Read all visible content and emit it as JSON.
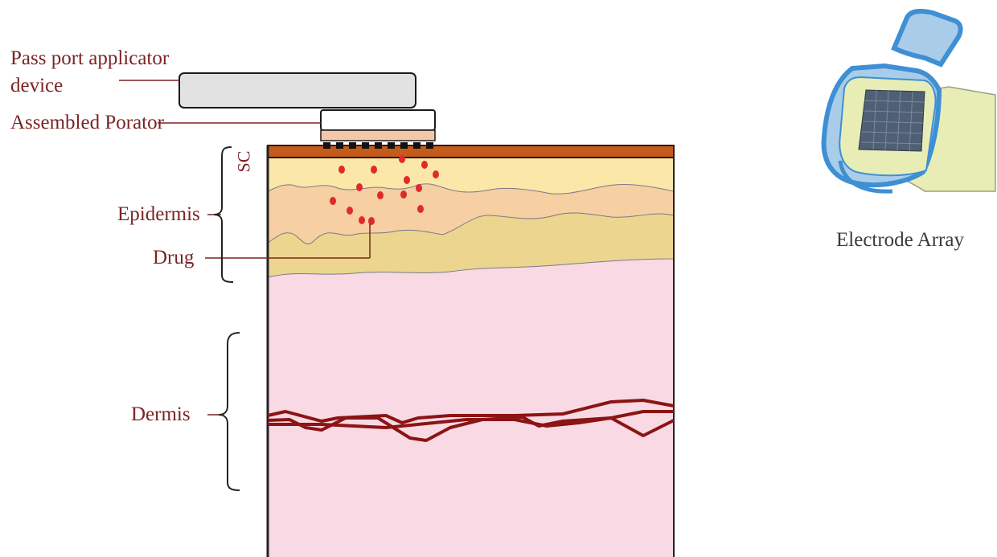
{
  "labels": {
    "applicator_line1": "Pass port applicator",
    "applicator_line2": "device",
    "porator": "Assembled Porator",
    "sc": "SC",
    "epidermis": "Epidermis",
    "drug": "Drug",
    "dermis": "Dermis",
    "electrode_array": "Electrode Array"
  },
  "colors": {
    "label_text": "#7a2424",
    "stratum_corneum": "#c45a1c",
    "epidermis_upper": "#fbe7a8",
    "epidermis_wave": "#f6cfa2",
    "epidermis_lower": "#ecd58f",
    "dermis": "#f8d9e4",
    "drug_dots": "#e02a2a",
    "vessels": "#8b1414",
    "device_gray": "#e2e2e2",
    "electrode_blue": "#3f8fd4",
    "electrode_pad": "#e8edb6",
    "electrode_grid": "#4f5f74"
  },
  "icons": [
    "electrode-array-icon"
  ]
}
